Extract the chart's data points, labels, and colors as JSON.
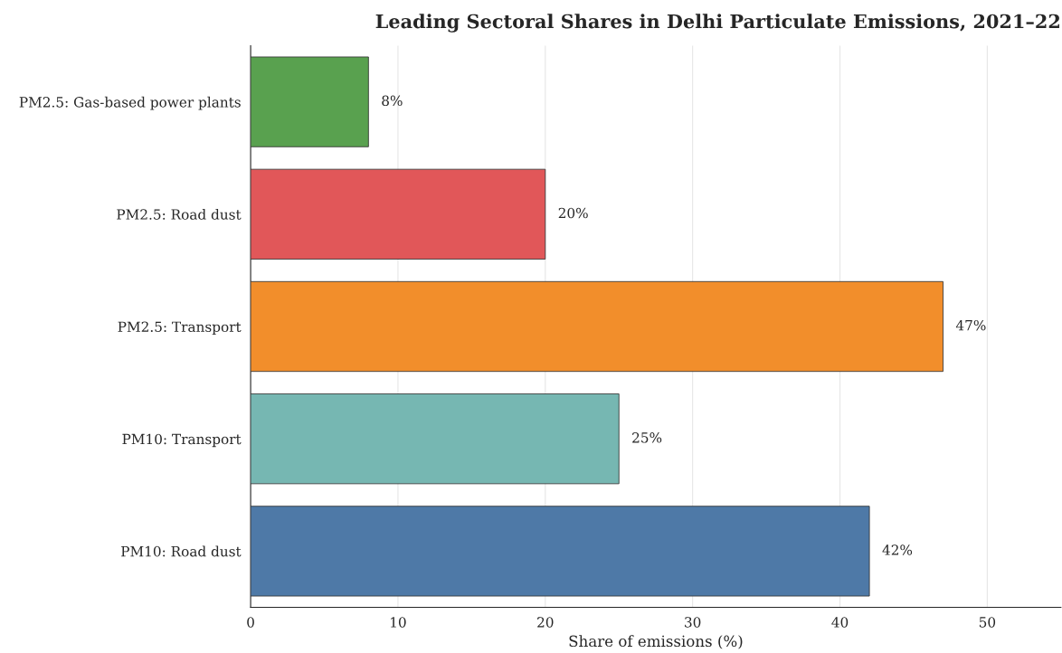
{
  "chart_data": {
    "type": "bar",
    "orientation": "horizontal",
    "title": "Leading Sectoral Shares in Delhi Particulate Emissions, 2021–22",
    "xlabel": "Share of emissions (%)",
    "categories": [
      "PM2.5: Gas-based power plants",
      "PM2.5: Road dust",
      "PM2.5: Transport",
      "PM10: Transport",
      "PM10: Road dust"
    ],
    "values": [
      8,
      20,
      47,
      25,
      42
    ],
    "colors": [
      "#59a14f",
      "#e15759",
      "#f28e2b",
      "#76b7b2",
      "#4e79a7"
    ],
    "value_labels": [
      "8%",
      "20%",
      "47%",
      "25%",
      "42%"
    ],
    "xlim": [
      0,
      55
    ],
    "xticks": [
      0,
      10,
      20,
      30,
      40,
      50
    ],
    "grid": "x"
  }
}
